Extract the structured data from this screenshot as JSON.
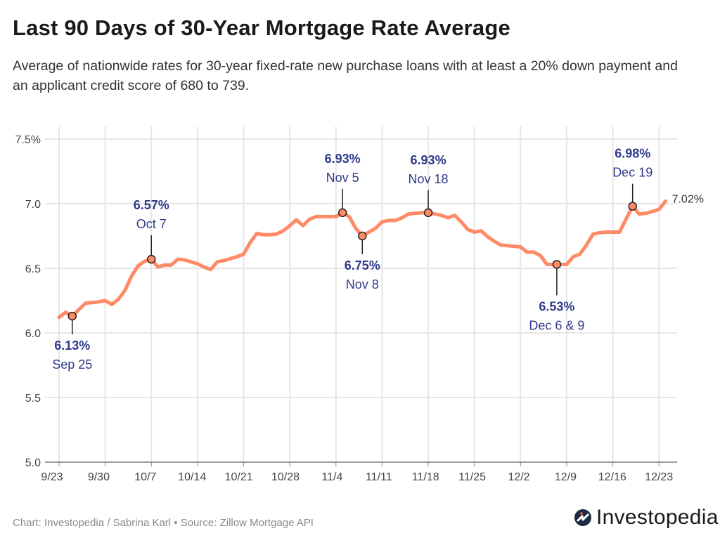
{
  "title": "Last 90 Days of 30-Year Mortgage Rate Average",
  "subtitle": "Average of nationwide rates for 30-year fixed-rate new purchase loans with at least a 20% down payment and an applicant credit score of 680 to 739.",
  "footer": "Chart: Investopedia / Sabrina Karl • Source: Zillow Mortgage API",
  "logo_text": "Investopedia",
  "colors": {
    "line": "#ff8a66",
    "annotation": "#2f3a8a",
    "grid": "#e6e6e6",
    "axis_text": "#444444"
  },
  "chart_data": {
    "type": "line",
    "title": "",
    "xlabel": "",
    "ylabel": "",
    "ylim": [
      5.0,
      7.5
    ],
    "grid": true,
    "y_ticks": [
      {
        "v": 7.5,
        "label": "7.5%"
      },
      {
        "v": 7.0,
        "label": "7.0"
      },
      {
        "v": 6.5,
        "label": "6.5"
      },
      {
        "v": 6.0,
        "label": "6.0"
      },
      {
        "v": 5.5,
        "label": "5.5"
      },
      {
        "v": 5.0,
        "label": "5.0"
      }
    ],
    "x_ticks": [
      "9/23",
      "9/30",
      "10/7",
      "10/14",
      "10/21",
      "10/28",
      "11/4",
      "11/11",
      "11/18",
      "11/25",
      "12/2",
      "12/9",
      "12/16",
      "12/23"
    ],
    "x": [
      "9/23",
      "9/24",
      "9/25",
      "9/26",
      "9/27",
      "9/28",
      "9/29",
      "9/30",
      "10/1",
      "10/2",
      "10/3",
      "10/4",
      "10/5",
      "10/6",
      "10/7",
      "10/8",
      "10/9",
      "10/10",
      "10/11",
      "10/12",
      "10/13",
      "10/14",
      "10/15",
      "10/16",
      "10/17",
      "10/18",
      "10/19",
      "10/20",
      "10/21",
      "10/22",
      "10/23",
      "10/24",
      "10/25",
      "10/26",
      "10/27",
      "10/28",
      "10/29",
      "10/30",
      "10/31",
      "11/1",
      "11/2",
      "11/3",
      "11/4",
      "11/5",
      "11/6",
      "11/7",
      "11/8",
      "11/9",
      "11/10",
      "11/11",
      "11/12",
      "11/13",
      "11/14",
      "11/15",
      "11/16",
      "11/17",
      "11/18",
      "11/19",
      "11/20",
      "11/21",
      "11/22",
      "11/23",
      "11/24",
      "11/25",
      "11/26",
      "11/27",
      "11/28",
      "11/29",
      "11/30",
      "12/1",
      "12/2",
      "12/3",
      "12/4",
      "12/5",
      "12/6",
      "12/7",
      "12/8",
      "12/9",
      "12/10",
      "12/11",
      "12/12",
      "12/13",
      "12/14",
      "12/15",
      "12/16",
      "12/17",
      "12/18",
      "12/19",
      "12/20",
      "12/21",
      "12/22",
      "12/23",
      "12/24"
    ],
    "values": [
      6.12,
      6.16,
      6.13,
      6.18,
      6.23,
      6.235,
      6.24,
      6.25,
      6.22,
      6.26,
      6.33,
      6.44,
      6.52,
      6.555,
      6.57,
      6.51,
      6.525,
      6.525,
      6.57,
      6.565,
      6.55,
      6.535,
      6.51,
      6.49,
      6.55,
      6.56,
      6.575,
      6.59,
      6.61,
      6.7,
      6.77,
      6.76,
      6.76,
      6.765,
      6.79,
      6.83,
      6.875,
      6.83,
      6.88,
      6.9,
      6.9,
      6.9,
      6.9,
      6.93,
      6.9,
      6.81,
      6.75,
      6.78,
      6.81,
      6.86,
      6.87,
      6.87,
      6.89,
      6.92,
      6.925,
      6.93,
      6.93,
      6.92,
      6.91,
      6.89,
      6.91,
      6.86,
      6.8,
      6.78,
      6.79,
      6.745,
      6.71,
      6.68,
      6.675,
      6.67,
      6.665,
      6.625,
      6.625,
      6.6,
      6.53,
      6.53,
      6.53,
      6.53,
      6.59,
      6.61,
      6.68,
      6.765,
      6.775,
      6.78,
      6.78,
      6.78,
      6.88,
      6.98,
      6.92,
      6.925,
      6.94,
      6.955,
      7.02
    ],
    "annotations": [
      {
        "dates": [
          "9/25"
        ],
        "value": 6.13,
        "value_label": "6.13%",
        "date_label": "Sep 25",
        "side": "below"
      },
      {
        "dates": [
          "10/7"
        ],
        "value": 6.57,
        "value_label": "6.57%",
        "date_label": "Oct 7",
        "side": "above"
      },
      {
        "dates": [
          "11/5"
        ],
        "value": 6.93,
        "value_label": "6.93%",
        "date_label": "Nov 5",
        "side": "above"
      },
      {
        "dates": [
          "11/8"
        ],
        "value": 6.75,
        "value_label": "6.75%",
        "date_label": "Nov 8",
        "side": "below"
      },
      {
        "dates": [
          "11/18"
        ],
        "value": 6.93,
        "value_label": "6.93%",
        "date_label": "Nov 18",
        "side": "above"
      },
      {
        "dates": [
          "12/6",
          "12/9"
        ],
        "value": 6.53,
        "value_label": "6.53%",
        "date_label": "Dec 6 & 9",
        "side": "below"
      },
      {
        "dates": [
          "12/19"
        ],
        "value": 6.98,
        "value_label": "6.98%",
        "date_label": "Dec 19",
        "side": "above"
      }
    ],
    "end_label": "7.02%"
  }
}
